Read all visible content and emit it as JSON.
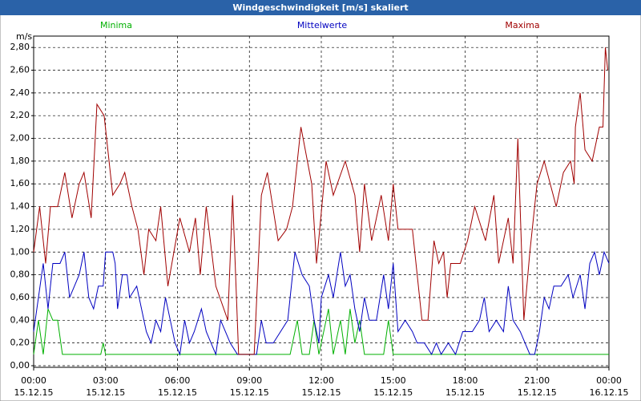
{
  "chart_data": {
    "type": "line",
    "title": "Windgeschwindigkeit [m/s] skaliert",
    "y_label": "m/s",
    "xlim": [
      0,
      24
    ],
    "ylim": [
      0,
      2.9
    ],
    "grid": true,
    "xticks": [
      {
        "value": 0,
        "label": "00:00"
      },
      {
        "value": 3,
        "label": "03:00"
      },
      {
        "value": 6,
        "label": "06:00"
      },
      {
        "value": 9,
        "label": "09:00"
      },
      {
        "value": 12,
        "label": "12:00"
      },
      {
        "value": 15,
        "label": "15:00"
      },
      {
        "value": 18,
        "label": "18:00"
      },
      {
        "value": 21,
        "label": "21:00"
      },
      {
        "value": 24,
        "label": "00:00"
      }
    ],
    "xtick_dates": [
      "15.12.15",
      "15.12.15",
      "15.12.15",
      "15.12.15",
      "15.12.15",
      "15.12.15",
      "15.12.15",
      "15.12.15",
      "16.12.15"
    ],
    "yticks": [
      {
        "value": 0,
        "label": "0,00"
      },
      {
        "value": 0.2,
        "label": "0,20"
      },
      {
        "value": 0.4,
        "label": "0,40"
      },
      {
        "value": 0.6,
        "label": "0,60"
      },
      {
        "value": 0.8,
        "label": "0,80"
      },
      {
        "value": 1,
        "label": "1,00"
      },
      {
        "value": 1.2,
        "label": "1,20"
      },
      {
        "value": 1.4,
        "label": "1,40"
      },
      {
        "value": 1.6,
        "label": "1,60"
      },
      {
        "value": 1.8,
        "label": "1,80"
      },
      {
        "value": 2,
        "label": "2,00"
      },
      {
        "value": 2.2,
        "label": "2,20"
      },
      {
        "value": 2.4,
        "label": "2,40"
      },
      {
        "value": 2.6,
        "label": "2,60"
      },
      {
        "value": 2.8,
        "label": "2,80"
      }
    ],
    "series": [
      {
        "name": "Minima",
        "color": "#00b000",
        "x": [
          0,
          0.2,
          0.4,
          0.6,
          0.8,
          1.0,
          1.2,
          2.8,
          2.9,
          3.0,
          10.7,
          11.0,
          11.2,
          11.5,
          11.7,
          11.9,
          12.3,
          12.5,
          12.8,
          13.0,
          13.2,
          13.4,
          13.6,
          13.8,
          14.6,
          14.8,
          15.0,
          24
        ],
        "values": [
          0.1,
          0.4,
          0.1,
          0.5,
          0.4,
          0.4,
          0.1,
          0.1,
          0.2,
          0.1,
          0.1,
          0.4,
          0.1,
          0.1,
          0.4,
          0.1,
          0.5,
          0.1,
          0.4,
          0.1,
          0.5,
          0.2,
          0.4,
          0.1,
          0.1,
          0.4,
          0.1,
          0.1
        ]
      },
      {
        "name": "Mittelwerte",
        "color": "#0000c0",
        "x": [
          0,
          0.4,
          0.6,
          0.8,
          1.1,
          1.3,
          1.5,
          1.7,
          1.9,
          2.1,
          2.3,
          2.5,
          2.7,
          2.9,
          3.0,
          3.3,
          3.4,
          3.5,
          3.7,
          3.9,
          4.0,
          4.3,
          4.5,
          4.7,
          4.9,
          5.1,
          5.3,
          5.5,
          5.7,
          5.9,
          6.1,
          6.3,
          6.5,
          6.7,
          7.0,
          7.2,
          7.4,
          7.6,
          7.8,
          8.0,
          8.2,
          8.5,
          9.0,
          9.3,
          9.5,
          9.7,
          10.0,
          10.3,
          10.6,
          10.9,
          11.2,
          11.5,
          11.7,
          11.9,
          12.0,
          12.3,
          12.5,
          12.8,
          13.0,
          13.2,
          13.4,
          13.6,
          13.8,
          14.0,
          14.3,
          14.6,
          14.8,
          15.0,
          15.2,
          15.5,
          15.8,
          16.0,
          16.3,
          16.6,
          16.8,
          17.0,
          17.3,
          17.6,
          17.9,
          18.3,
          18.6,
          18.8,
          19.0,
          19.3,
          19.6,
          19.8,
          20.0,
          20.3,
          20.5,
          20.7,
          20.9,
          21.1,
          21.3,
          21.5,
          21.7,
          22.0,
          22.3,
          22.5,
          22.8,
          23.0,
          23.2,
          23.4,
          23.6,
          23.8,
          24.0
        ],
        "values": [
          0.3,
          0.9,
          0.5,
          0.9,
          0.9,
          1.0,
          0.6,
          0.7,
          0.8,
          1.0,
          0.6,
          0.5,
          0.7,
          0.7,
          1.0,
          1.0,
          0.9,
          0.5,
          0.8,
          0.8,
          0.6,
          0.7,
          0.5,
          0.3,
          0.2,
          0.4,
          0.3,
          0.6,
          0.4,
          0.2,
          0.1,
          0.4,
          0.2,
          0.3,
          0.5,
          0.3,
          0.2,
          0.1,
          0.4,
          0.3,
          0.2,
          0.1,
          0.1,
          0.1,
          0.4,
          0.2,
          0.2,
          0.3,
          0.4,
          1.0,
          0.8,
          0.7,
          0.4,
          0.2,
          0.6,
          0.8,
          0.6,
          1.0,
          0.7,
          0.8,
          0.5,
          0.3,
          0.6,
          0.4,
          0.4,
          0.8,
          0.5,
          0.9,
          0.3,
          0.4,
          0.3,
          0.2,
          0.2,
          0.1,
          0.2,
          0.1,
          0.2,
          0.1,
          0.3,
          0.3,
          0.4,
          0.6,
          0.3,
          0.4,
          0.3,
          0.7,
          0.4,
          0.3,
          0.2,
          0.1,
          0.1,
          0.3,
          0.6,
          0.5,
          0.7,
          0.7,
          0.8,
          0.6,
          0.8,
          0.5,
          0.9,
          1.0,
          0.8,
          1.0,
          0.9
        ]
      },
      {
        "name": "Maxima",
        "color": "#a00000",
        "x": [
          0,
          0.25,
          0.5,
          0.7,
          1.0,
          1.3,
          1.6,
          1.9,
          2.1,
          2.4,
          2.64,
          2.94,
          3.3,
          3.6,
          3.8,
          4.1,
          4.35,
          4.6,
          4.8,
          5.1,
          5.3,
          5.6,
          6.1,
          6.5,
          6.75,
          6.95,
          7.2,
          7.6,
          8.1,
          8.3,
          8.55,
          9.2,
          9.5,
          9.75,
          10.2,
          10.55,
          10.8,
          11.15,
          11.6,
          11.8,
          12.2,
          12.5,
          13.0,
          13.4,
          13.6,
          13.8,
          14.1,
          14.5,
          14.8,
          15.0,
          15.2,
          15.8,
          16.2,
          16.45,
          16.7,
          16.9,
          17.1,
          17.25,
          17.4,
          17.8,
          18.1,
          18.4,
          18.85,
          19.2,
          19.4,
          19.8,
          20.0,
          20.2,
          20.45,
          20.7,
          21.0,
          21.3,
          21.8,
          22.1,
          22.4,
          22.55,
          22.6,
          22.8,
          23.0,
          23.3,
          23.6,
          23.75,
          23.85,
          23.95
        ],
        "values": [
          1.0,
          1.4,
          0.9,
          1.4,
          1.4,
          1.7,
          1.3,
          1.6,
          1.7,
          1.3,
          2.3,
          2.2,
          1.5,
          1.6,
          1.7,
          1.4,
          1.2,
          0.8,
          1.2,
          1.1,
          1.4,
          0.7,
          1.3,
          1.0,
          1.3,
          0.8,
          1.4,
          0.7,
          0.4,
          1.5,
          0.1,
          0.1,
          1.5,
          1.7,
          1.1,
          1.2,
          1.4,
          2.1,
          1.6,
          0.9,
          1.8,
          1.5,
          1.8,
          1.5,
          1.0,
          1.6,
          1.1,
          1.5,
          1.1,
          1.6,
          1.2,
          1.2,
          0.4,
          0.4,
          1.1,
          0.9,
          1.0,
          0.6,
          0.9,
          0.9,
          1.1,
          1.4,
          1.1,
          1.5,
          0.9,
          1.3,
          0.9,
          2.0,
          0.4,
          1.0,
          1.6,
          1.8,
          1.4,
          1.7,
          1.8,
          1.6,
          2.1,
          2.4,
          1.9,
          1.8,
          2.1,
          2.1,
          2.8,
          2.6
        ]
      }
    ]
  }
}
